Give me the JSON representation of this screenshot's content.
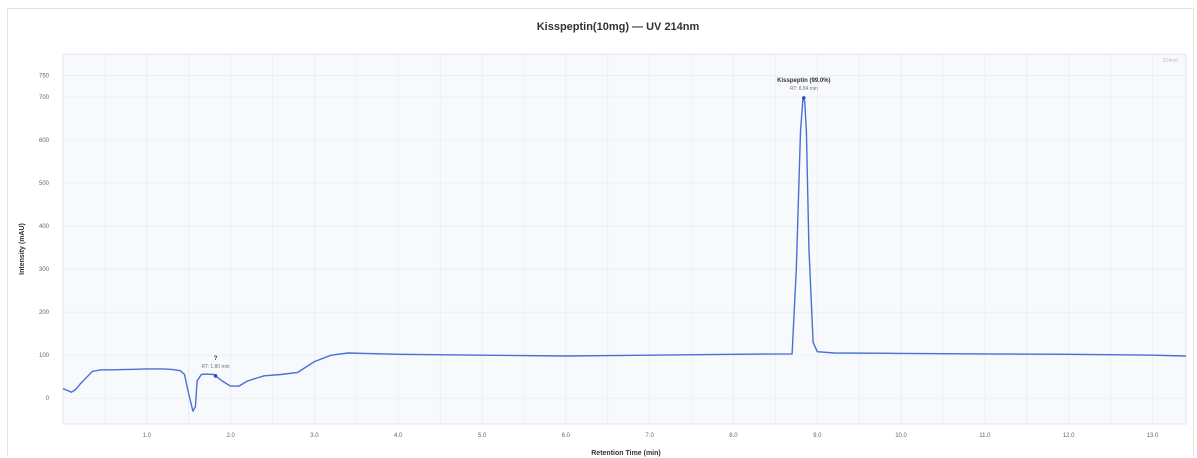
{
  "chart_data": {
    "type": "line",
    "title": "Kisspeptin(10mg) — UV 214nm",
    "xlabel": "Retention Time (min)",
    "ylabel": "Intensity (mAU)",
    "corner_label": "214nm",
    "x_ticks": [
      "1.0",
      "2.0",
      "3.0",
      "4.0",
      "5.0",
      "6.0",
      "7.0",
      "8.0",
      "9.0",
      "10.0",
      "11.0",
      "12.0",
      "13.0"
    ],
    "y_ticks": [
      "0",
      "100",
      "200",
      "300",
      "400",
      "500",
      "600",
      "700",
      "750"
    ],
    "xlim": [
      0,
      13.4
    ],
    "ylim": [
      -60,
      800
    ],
    "grid": true,
    "series": [
      {
        "color": "#4a6fd4",
        "x": [
          0,
          0.05,
          0.1,
          0.15,
          0.2,
          0.3,
          0.35,
          0.45,
          0.6,
          0.8,
          1.0,
          1.2,
          1.3,
          1.4,
          1.45,
          1.5,
          1.55,
          1.58,
          1.6,
          1.65,
          1.7,
          1.8,
          1.82,
          1.9,
          2.0,
          2.1,
          2.2,
          2.4,
          2.6,
          2.8,
          3.0,
          3.2,
          3.4,
          3.6,
          4.0,
          5.0,
          6.0,
          7.0,
          8.0,
          8.7,
          8.75,
          8.8,
          8.83,
          8.85,
          8.87,
          8.9,
          8.95,
          9.0,
          9.2,
          10.0,
          11.0,
          12.0,
          13.0,
          13.4
        ],
        "y": [
          22,
          18,
          14,
          20,
          32,
          52,
          62,
          66,
          66,
          67,
          68,
          68,
          67,
          64,
          55,
          10,
          -30,
          -20,
          40,
          55,
          56,
          55,
          52,
          40,
          28,
          28,
          40,
          52,
          55,
          60,
          85,
          100,
          105,
          104,
          102,
          100,
          98,
          100,
          102,
          103,
          300,
          620,
          698,
          690,
          620,
          350,
          130,
          108,
          105,
          104,
          103,
          102,
          100,
          98
        ]
      }
    ],
    "annotations": [
      {
        "label": "?",
        "sublabel": "RT: 1.80 min",
        "x": 1.82,
        "y": 52
      },
      {
        "label": "Kisspeptin (99.0%)",
        "sublabel": "RT: 8.84 min",
        "x": 8.84,
        "y": 698
      }
    ]
  }
}
